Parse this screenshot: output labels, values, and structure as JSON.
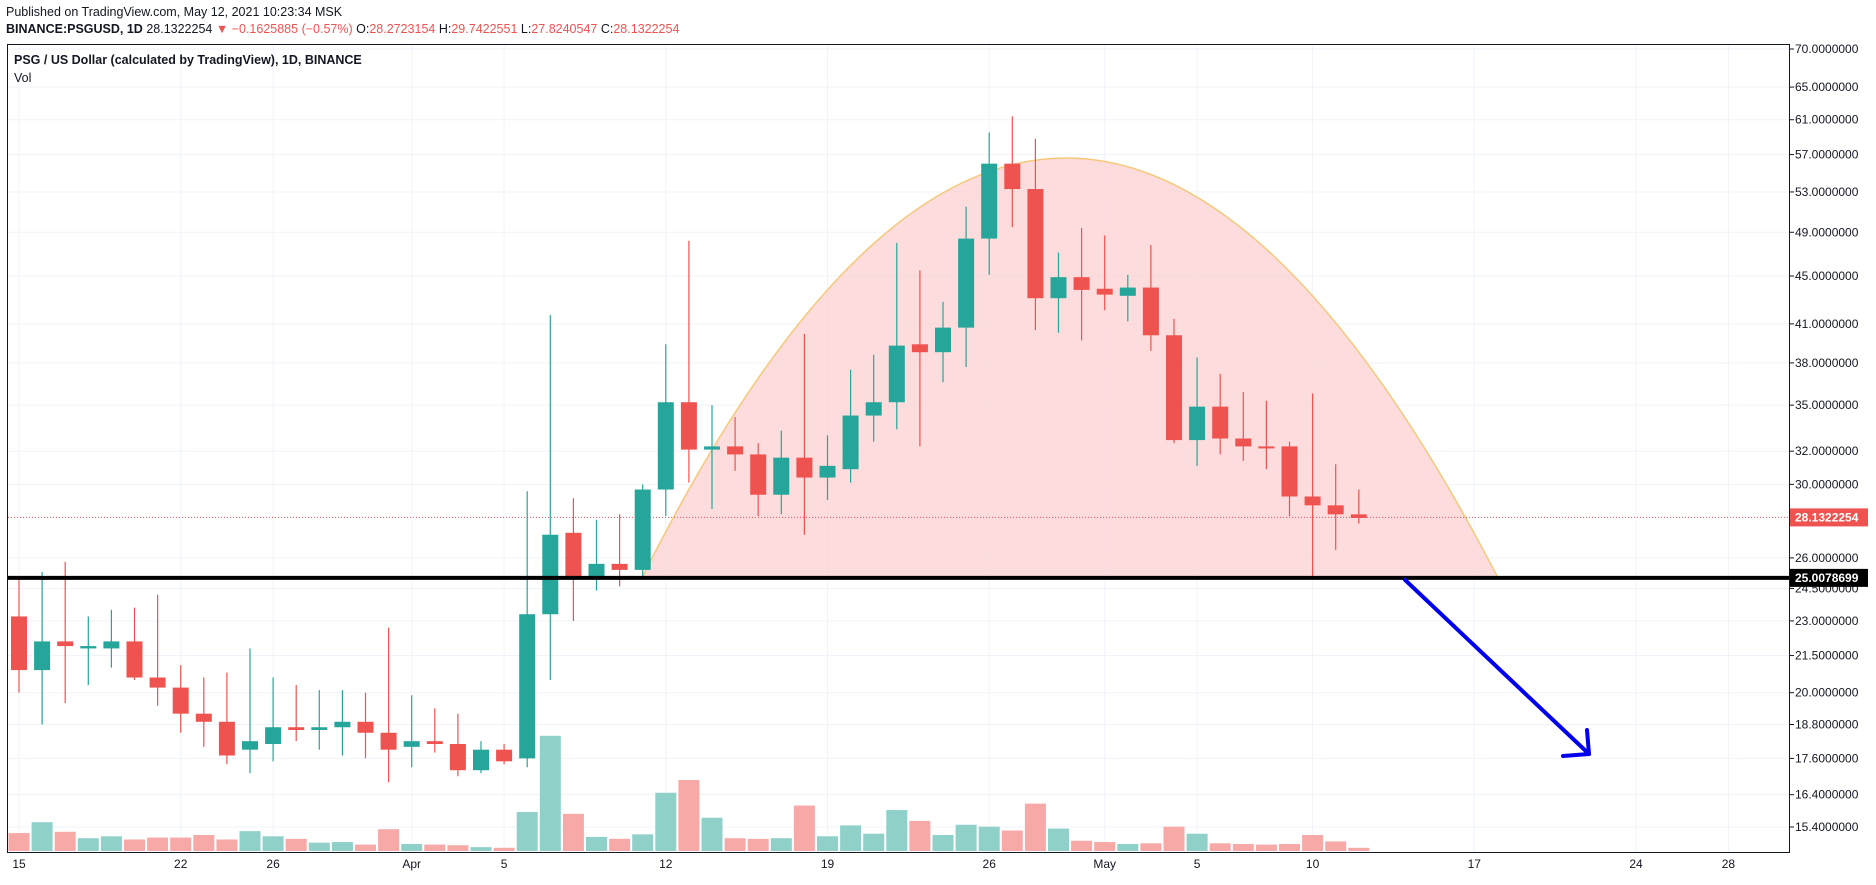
{
  "header": {
    "published": "Published on TradingView.com, May 12, 2021 10:23:34 MSK",
    "symbol": "BINANCE:PSGUSD, 1D",
    "last": "28.1322254",
    "change_arrow": "▼",
    "change": "−0.1625885 (−0.57%)",
    "o_label": "O:",
    "o_value": "28.2723154",
    "h_label": "H:",
    "h_value": "29.7422551",
    "l_label": "L:",
    "l_value": "27.8240547",
    "c_label": "C:",
    "c_value": "28.1322254"
  },
  "legend": {
    "title": "PSG / US Dollar (calculated by TradingView), 1D, BINANCE",
    "vol": "Vol"
  },
  "colors": {
    "up": "#26a69a",
    "down": "#ef5350",
    "vol_up": "#8fd1c9",
    "vol_down": "#f7a9a7",
    "pattern_fill": "#fbd3d3",
    "pattern_stroke": "#f6c87a",
    "support": "#000000",
    "arrow": "#0000ee"
  },
  "chart_data": {
    "type": "candlestick",
    "title": "PSG / US Dollar (calculated by TradingView), 1D, BINANCE",
    "x_ticks": [
      {
        "label": "15",
        "day": 0
      },
      {
        "label": "22",
        "day": 7
      },
      {
        "label": "26",
        "day": 11
      },
      {
        "label": "Apr",
        "day": 17
      },
      {
        "label": "5",
        "day": 21
      },
      {
        "label": "12",
        "day": 28
      },
      {
        "label": "19",
        "day": 35
      },
      {
        "label": "26",
        "day": 42
      },
      {
        "label": "May",
        "day": 47
      },
      {
        "label": "5",
        "day": 51
      },
      {
        "label": "10",
        "day": 56
      },
      {
        "label": "17",
        "day": 63
      },
      {
        "label": "24",
        "day": 70
      },
      {
        "label": "28",
        "day": 74
      }
    ],
    "y_ticks": [
      "70.0000000",
      "65.0000000",
      "61.0000000",
      "57.0000000",
      "53.0000000",
      "49.0000000",
      "45.0000000",
      "41.0000000",
      "38.0000000",
      "35.0000000",
      "32.0000000",
      "30.0000000",
      "26.0000000",
      "24.5000000",
      "23.0000000",
      "21.5000000",
      "20.0000000",
      "18.8000000",
      "17.6000000",
      "16.4000000",
      "15.4000000"
    ],
    "y_scale": "log",
    "last_price_label": "28.1322254",
    "support_label": "25.0078699",
    "support_level": 25.0078699,
    "candles": [
      {
        "o": 23.2,
        "h": 25.1,
        "l": 20.0,
        "c": 20.9,
        "v": 28
      },
      {
        "o": 20.9,
        "h": 25.3,
        "l": 18.8,
        "c": 22.1,
        "v": 45
      },
      {
        "o": 22.1,
        "h": 25.8,
        "l": 19.6,
        "c": 21.9,
        "v": 30
      },
      {
        "o": 21.8,
        "h": 23.2,
        "l": 20.3,
        "c": 21.9,
        "v": 20
      },
      {
        "o": 21.8,
        "h": 23.5,
        "l": 21.0,
        "c": 22.1,
        "v": 23
      },
      {
        "o": 22.1,
        "h": 23.6,
        "l": 20.5,
        "c": 20.6,
        "v": 18
      },
      {
        "o": 20.6,
        "h": 24.2,
        "l": 19.5,
        "c": 20.2,
        "v": 21
      },
      {
        "o": 20.2,
        "h": 21.1,
        "l": 18.5,
        "c": 19.2,
        "v": 21
      },
      {
        "o": 19.2,
        "h": 20.6,
        "l": 18.0,
        "c": 18.9,
        "v": 25
      },
      {
        "o": 18.9,
        "h": 20.8,
        "l": 17.4,
        "c": 17.7,
        "v": 18
      },
      {
        "o": 17.9,
        "h": 21.8,
        "l": 17.1,
        "c": 18.2,
        "v": 31
      },
      {
        "o": 18.1,
        "h": 20.6,
        "l": 17.5,
        "c": 18.7,
        "v": 23
      },
      {
        "o": 18.7,
        "h": 20.3,
        "l": 18.2,
        "c": 18.6,
        "v": 19
      },
      {
        "o": 18.6,
        "h": 20.1,
        "l": 17.9,
        "c": 18.7,
        "v": 13
      },
      {
        "o": 18.7,
        "h": 20.1,
        "l": 17.7,
        "c": 18.9,
        "v": 14
      },
      {
        "o": 18.9,
        "h": 20.0,
        "l": 17.6,
        "c": 18.5,
        "v": 10
      },
      {
        "o": 18.5,
        "h": 22.7,
        "l": 16.8,
        "c": 17.9,
        "v": 34
      },
      {
        "o": 18.0,
        "h": 19.9,
        "l": 17.3,
        "c": 18.2,
        "v": 11
      },
      {
        "o": 18.2,
        "h": 19.4,
        "l": 17.8,
        "c": 18.1,
        "v": 10
      },
      {
        "o": 18.1,
        "h": 19.2,
        "l": 17.0,
        "c": 17.2,
        "v": 9
      },
      {
        "o": 17.2,
        "h": 18.2,
        "l": 17.1,
        "c": 17.9,
        "v": 6
      },
      {
        "o": 17.9,
        "h": 18.1,
        "l": 17.4,
        "c": 17.5,
        "v": 5
      },
      {
        "o": 17.6,
        "h": 29.6,
        "l": 17.3,
        "c": 23.3,
        "v": 61
      },
      {
        "o": 23.3,
        "h": 41.7,
        "l": 20.5,
        "c": 27.2,
        "v": 180
      },
      {
        "o": 27.3,
        "h": 29.2,
        "l": 23.0,
        "c": 25.1,
        "v": 58
      },
      {
        "o": 25.1,
        "h": 28.0,
        "l": 24.4,
        "c": 25.7,
        "v": 22
      },
      {
        "o": 25.7,
        "h": 28.3,
        "l": 24.6,
        "c": 25.4,
        "v": 19
      },
      {
        "o": 25.4,
        "h": 30.0,
        "l": 25.0,
        "c": 29.7,
        "v": 26
      },
      {
        "o": 29.7,
        "h": 39.4,
        "l": 28.2,
        "c": 35.2,
        "v": 91
      },
      {
        "o": 35.2,
        "h": 48.2,
        "l": 30.1,
        "c": 32.1,
        "v": 111
      },
      {
        "o": 32.1,
        "h": 35.0,
        "l": 28.6,
        "c": 32.3,
        "v": 52
      },
      {
        "o": 32.3,
        "h": 34.2,
        "l": 30.8,
        "c": 31.8,
        "v": 20
      },
      {
        "o": 31.8,
        "h": 32.5,
        "l": 28.2,
        "c": 29.4,
        "v": 19
      },
      {
        "o": 29.4,
        "h": 33.3,
        "l": 28.3,
        "c": 31.6,
        "v": 20
      },
      {
        "o": 31.6,
        "h": 40.2,
        "l": 27.2,
        "c": 30.4,
        "v": 71
      },
      {
        "o": 30.4,
        "h": 33.0,
        "l": 29.1,
        "c": 31.1,
        "v": 23
      },
      {
        "o": 30.9,
        "h": 37.5,
        "l": 30.1,
        "c": 34.3,
        "v": 40
      },
      {
        "o": 34.3,
        "h": 38.6,
        "l": 32.6,
        "c": 35.2,
        "v": 27
      },
      {
        "o": 35.2,
        "h": 48.0,
        "l": 33.4,
        "c": 39.3,
        "v": 64
      },
      {
        "o": 39.4,
        "h": 45.5,
        "l": 32.3,
        "c": 38.8,
        "v": 47
      },
      {
        "o": 38.8,
        "h": 42.8,
        "l": 36.6,
        "c": 40.7,
        "v": 25
      },
      {
        "o": 40.7,
        "h": 51.5,
        "l": 37.7,
        "c": 48.4,
        "v": 41
      },
      {
        "o": 48.4,
        "h": 59.5,
        "l": 45.1,
        "c": 56.0,
        "v": 38
      },
      {
        "o": 56.0,
        "h": 61.4,
        "l": 49.5,
        "c": 53.3,
        "v": 32
      },
      {
        "o": 53.3,
        "h": 58.8,
        "l": 40.5,
        "c": 43.1,
        "v": 74
      },
      {
        "o": 43.1,
        "h": 47.1,
        "l": 40.3,
        "c": 44.9,
        "v": 35
      },
      {
        "o": 44.9,
        "h": 49.4,
        "l": 39.7,
        "c": 43.8,
        "v": 16
      },
      {
        "o": 43.9,
        "h": 48.7,
        "l": 42.1,
        "c": 43.4,
        "v": 14
      },
      {
        "o": 43.3,
        "h": 45.1,
        "l": 41.2,
        "c": 44.0,
        "v": 11
      },
      {
        "o": 44.0,
        "h": 47.8,
        "l": 38.9,
        "c": 40.1,
        "v": 12
      },
      {
        "o": 40.1,
        "h": 41.4,
        "l": 32.5,
        "c": 32.7,
        "v": 38
      },
      {
        "o": 32.7,
        "h": 38.4,
        "l": 31.1,
        "c": 34.9,
        "v": 27
      },
      {
        "o": 34.9,
        "h": 37.2,
        "l": 31.8,
        "c": 32.8,
        "v": 12
      },
      {
        "o": 32.8,
        "h": 35.9,
        "l": 31.4,
        "c": 32.3,
        "v": 11
      },
      {
        "o": 32.3,
        "h": 35.3,
        "l": 30.9,
        "c": 32.2,
        "v": 10
      },
      {
        "o": 32.3,
        "h": 32.6,
        "l": 28.2,
        "c": 29.3,
        "v": 11
      },
      {
        "o": 29.3,
        "h": 35.8,
        "l": 25.0,
        "c": 28.8,
        "v": 25
      },
      {
        "o": 28.8,
        "h": 31.2,
        "l": 26.4,
        "c": 28.3,
        "v": 15
      },
      {
        "o": 28.3,
        "h": 29.7,
        "l": 27.8,
        "c": 28.1,
        "v": 5
      }
    ]
  }
}
